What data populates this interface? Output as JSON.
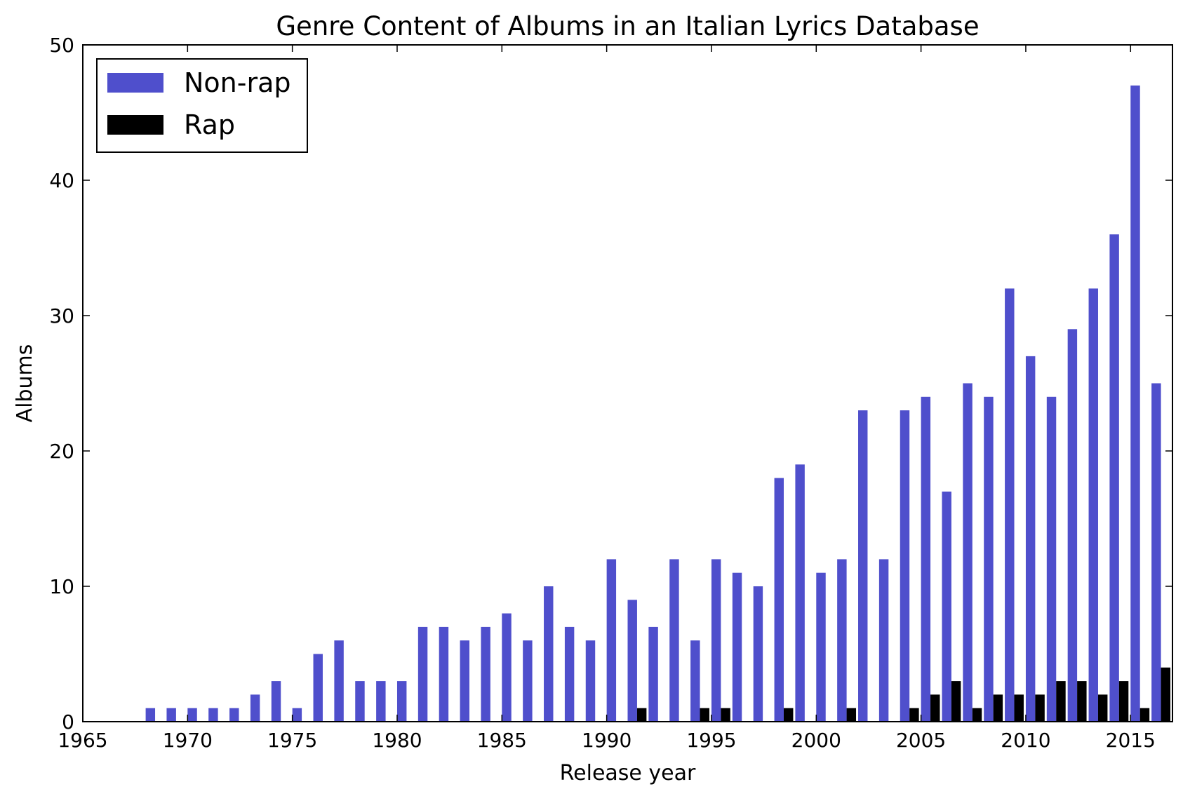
{
  "chart_data": {
    "type": "bar",
    "title": "Genre Content of Albums in an Italian Lyrics Database",
    "xlabel": "Release year",
    "ylabel": "Albums",
    "xlim": [
      1965,
      2017
    ],
    "ylim": [
      0,
      50
    ],
    "x_ticks": [
      1965,
      1970,
      1975,
      1980,
      1985,
      1990,
      1995,
      2000,
      2005,
      2010,
      2015
    ],
    "y_ticks": [
      0,
      10,
      20,
      30,
      40,
      50
    ],
    "grid": false,
    "legend_position": "top-left",
    "categories": [
      1968,
      1969,
      1970,
      1971,
      1972,
      1973,
      1974,
      1975,
      1976,
      1977,
      1978,
      1979,
      1980,
      1981,
      1982,
      1983,
      1984,
      1985,
      1986,
      1987,
      1988,
      1989,
      1990,
      1991,
      1992,
      1993,
      1994,
      1995,
      1996,
      1997,
      1998,
      1999,
      2000,
      2001,
      2002,
      2003,
      2004,
      2005,
      2006,
      2007,
      2008,
      2009,
      2010,
      2011,
      2012,
      2013,
      2014,
      2015,
      2016
    ],
    "series": [
      {
        "name": "Non-rap",
        "color": "#4f4fcc",
        "values": [
          1,
          1,
          1,
          1,
          1,
          2,
          3,
          1,
          5,
          6,
          3,
          3,
          3,
          7,
          7,
          6,
          7,
          8,
          6,
          10,
          7,
          6,
          12,
          9,
          7,
          12,
          6,
          12,
          11,
          10,
          18,
          19,
          11,
          12,
          23,
          12,
          23,
          24,
          17,
          25,
          24,
          32,
          27,
          24,
          29,
          32,
          36,
          47,
          25
        ]
      },
      {
        "name": "Rap",
        "color": "#000000",
        "values": [
          0,
          0,
          0,
          0,
          0,
          0,
          0,
          0,
          0,
          0,
          0,
          0,
          0,
          0,
          0,
          0,
          0,
          0,
          0,
          0,
          0,
          0,
          0,
          1,
          0,
          0,
          1,
          1,
          0,
          0,
          1,
          0,
          0,
          1,
          0,
          0,
          1,
          2,
          3,
          1,
          2,
          2,
          2,
          3,
          3,
          2,
          3,
          1,
          4
        ]
      }
    ]
  }
}
